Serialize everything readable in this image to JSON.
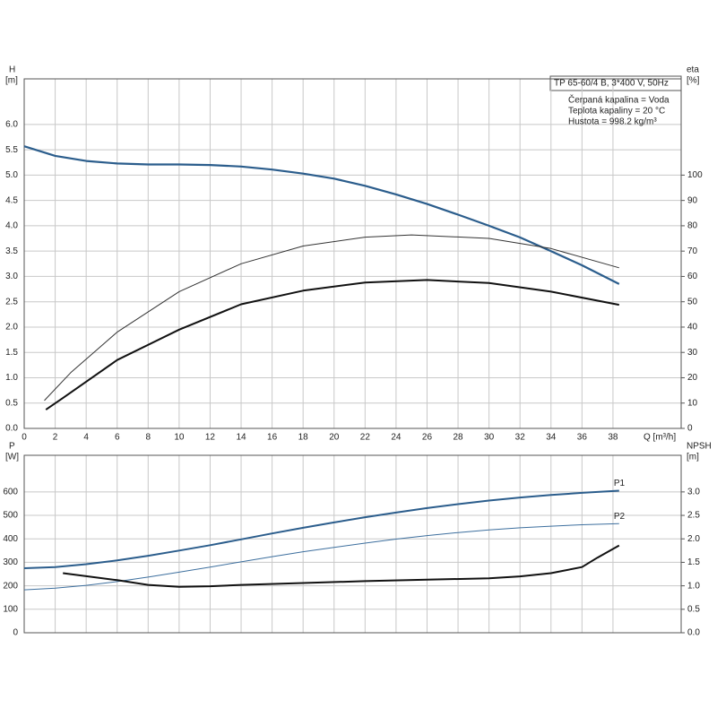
{
  "chart_data": [
    {
      "type": "line",
      "title": "TP 65-60/4 B, 3*400 V, 50Hz",
      "info": [
        "Čerpaná kapalina = Voda",
        "Teplota kapaliny = 20 °C",
        "Hustota = 998.2 kg/m³"
      ],
      "ylabel": "H",
      "yunit": "[m]",
      "y2label": "eta",
      "y2unit": "[%]",
      "xlabel": "Q [m³/h]",
      "xlim": [
        0,
        42.4
      ],
      "xticks": [
        0,
        2,
        4,
        6,
        8,
        10,
        12,
        14,
        16,
        18,
        20,
        22,
        24,
        26,
        28,
        30,
        32,
        34,
        36,
        38
      ],
      "ylim": [
        0,
        6.9
      ],
      "yticks": [
        {
          "value": 0,
          "label": "0.0"
        },
        0.5,
        {
          "value": 1,
          "label": "1.0"
        },
        1.5,
        {
          "value": 2,
          "label": "2.0"
        },
        2.5,
        {
          "value": 3,
          "label": "3.0"
        },
        3.5,
        {
          "value": 4,
          "label": "4.0"
        },
        4.5,
        {
          "value": 5,
          "label": "5.0"
        },
        5.5,
        {
          "value": 6,
          "label": "6.0"
        }
      ],
      "y2lim": [
        0,
        138
      ],
      "y2ticks": [
        0,
        10,
        20,
        30,
        40,
        50,
        60,
        70,
        80,
        90,
        100
      ],
      "grid": true,
      "series": [
        {
          "color": "#2b5d8c",
          "width": 2.2,
          "x": [
            0,
            2,
            4,
            6,
            8,
            10,
            12,
            14,
            16,
            18,
            20,
            22,
            24,
            26,
            28,
            30,
            32,
            34,
            36,
            38.4
          ],
          "values": [
            5.57,
            5.38,
            5.28,
            5.23,
            5.21,
            5.21,
            5.2,
            5.17,
            5.11,
            5.03,
            4.93,
            4.79,
            4.62,
            4.43,
            4.22,
            4.0,
            3.77,
            3.5,
            3.22,
            2.85
          ]
        },
        {
          "color": "#333333",
          "width": 1,
          "axis": "y2",
          "x": [
            1.3,
            3,
            6,
            10,
            14,
            18,
            22,
            25,
            30,
            34,
            38.4
          ],
          "values": [
            11,
            22,
            38,
            54,
            65,
            72,
            75.5,
            76.4,
            75,
            71,
            63.4
          ]
        },
        {
          "color": "#111111",
          "width": 2,
          "axis": "y2",
          "x": [
            1.4,
            2.5,
            6,
            10,
            14,
            18,
            22,
            26,
            30,
            34,
            38.4
          ],
          "values": [
            7.4,
            12,
            27,
            39,
            49,
            54.4,
            57.6,
            58.6,
            57.4,
            54,
            48.8
          ]
        }
      ]
    },
    {
      "type": "line",
      "ylabel": "P",
      "yunit": "[W]",
      "y2label": "NPSH",
      "y2unit": "[m]",
      "xlim": [
        0,
        42.4
      ],
      "xticks": [
        0,
        2,
        4,
        6,
        8,
        10,
        12,
        14,
        16,
        18,
        20,
        22,
        24,
        26,
        28,
        30,
        32,
        34,
        36,
        38
      ],
      "ylim": [
        0,
        756
      ],
      "yticks": [
        0,
        100,
        200,
        300,
        400,
        500,
        600
      ],
      "y2lim": [
        0,
        3.78
      ],
      "y2ticks": [
        {
          "value": 0,
          "label": "0.0"
        },
        0.5,
        {
          "value": 1,
          "label": "1.0"
        },
        1.5,
        {
          "value": 2,
          "label": "2.0"
        },
        2.5,
        {
          "value": 3,
          "label": "3.0"
        }
      ],
      "grid": true,
      "series": [
        {
          "name": "P1",
          "color": "#2b5d8c",
          "width": 2,
          "x": [
            0,
            2,
            4,
            6,
            8,
            10,
            12,
            14,
            16,
            18,
            20,
            22,
            24,
            26,
            28,
            30,
            32,
            34,
            36,
            38.4
          ],
          "values": [
            275,
            280,
            292,
            308,
            328,
            350,
            373,
            398,
            423,
            447,
            470,
            492,
            512,
            531,
            548,
            563,
            576,
            587,
            596,
            605
          ]
        },
        {
          "name": "P2",
          "color": "#3d6f9e",
          "width": 1,
          "x": [
            0,
            2,
            4,
            6,
            8,
            10,
            12,
            14,
            16,
            18,
            20,
            22,
            24,
            26,
            28,
            30,
            32,
            34,
            36,
            38.4
          ],
          "values": [
            183,
            190,
            202,
            218,
            237,
            258,
            280,
            302,
            324,
            345,
            364,
            382,
            399,
            414,
            427,
            438,
            447,
            454,
            460,
            465
          ]
        },
        {
          "color": "#111111",
          "width": 2,
          "axis": "y2",
          "x": [
            2.5,
            6,
            8,
            10,
            12,
            14,
            18,
            22,
            26,
            30,
            32,
            34,
            36,
            37,
            38.4
          ],
          "values": [
            1.27,
            1.12,
            1.02,
            0.98,
            0.99,
            1.02,
            1.06,
            1.1,
            1.13,
            1.16,
            1.2,
            1.27,
            1.4,
            1.6,
            1.86
          ]
        }
      ]
    }
  ]
}
